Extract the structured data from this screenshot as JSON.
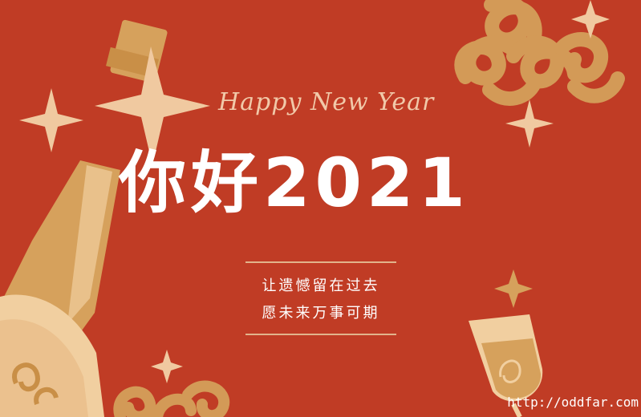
{
  "card": {
    "greeting_script": "Happy New Year",
    "headline": "你好2021",
    "line_1": "让遗憾留在过去",
    "line_2": "愿未来万事可期",
    "watermark": "http://oddfar.com"
  },
  "colors": {
    "background": "#c03c25",
    "gold": "#d6a15c",
    "cream": "#f1cfa0",
    "white": "#ffffff"
  }
}
